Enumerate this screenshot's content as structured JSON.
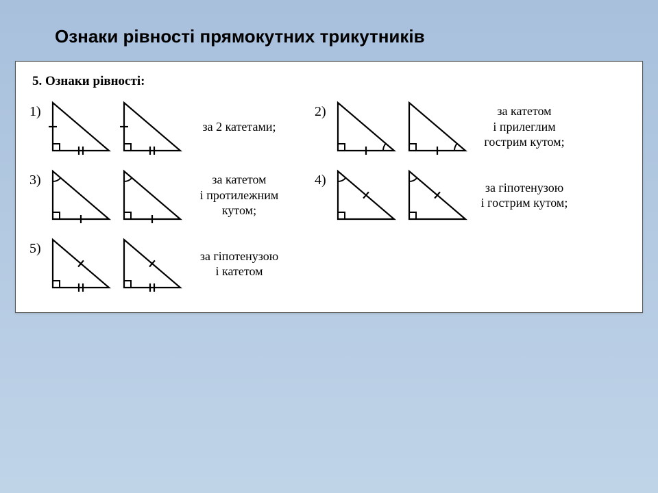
{
  "title": "Ознаки рівності прямокутних трикутників",
  "section": "5. Ознаки рівності:",
  "layout": {
    "tri_w": 94,
    "tri_h": 82,
    "stroke": "#000000",
    "stroke_w": 2.2
  },
  "items": [
    {
      "num": "1)",
      "desc": "за 2 катетами;",
      "marks": {
        "vleg_tick": 1,
        "hleg_tick": 2
      }
    },
    {
      "num": "2)",
      "desc": "за катетом\nі прилеглим\nгострим кутом;",
      "marks": {
        "hleg_tick": 1,
        "base_angle_arc": true
      }
    },
    {
      "num": "3)",
      "desc": "за катетом\nі протилежним\nкутом;",
      "marks": {
        "hleg_tick": 1,
        "top_angle_arc": true
      }
    },
    {
      "num": "4)",
      "desc": "за гіпотенузою\nі гострим кутом;",
      "marks": {
        "hyp_tick": 1,
        "top_angle_arc": true
      }
    },
    {
      "num": "5)",
      "desc": "за гіпотенузою\nі катетом",
      "marks": {
        "hyp_tick": 1,
        "hleg_tick": 2
      }
    }
  ],
  "grid": [
    [
      0,
      1
    ],
    [
      2,
      3
    ],
    [
      4
    ]
  ]
}
